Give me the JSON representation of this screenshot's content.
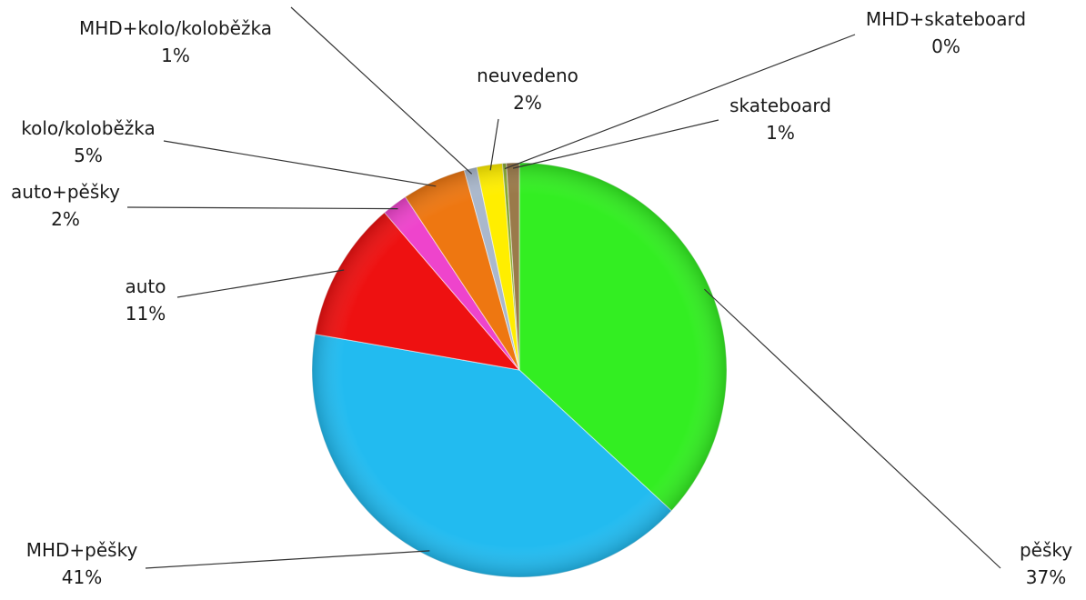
{
  "chart_data": {
    "type": "pie",
    "title": "",
    "slices": [
      {
        "label": "pěšky",
        "value": 37,
        "value_label": "37%",
        "color": "#33ee22"
      },
      {
        "label": "MHD+pěšky",
        "value": 41,
        "value_label": "41%",
        "color": "#22bbf0"
      },
      {
        "label": "auto",
        "value": 11,
        "value_label": "11%",
        "color": "#ee1111"
      },
      {
        "label": "auto+pěšky",
        "value": 2,
        "value_label": "2%",
        "color": "#ee44cc"
      },
      {
        "label": "kolo/koloběžka",
        "value": 5,
        "value_label": "5%",
        "color": "#ee7711"
      },
      {
        "label": "MHD+kolo/koloběžka",
        "value": 1,
        "value_label": "1%",
        "color": "#aab8cc"
      },
      {
        "label": "neuvedeno",
        "value": 2,
        "value_label": "2%",
        "color": "#ffee00"
      },
      {
        "label": "MHD+skateboard",
        "value": 0,
        "value_label": "0%",
        "color": "#88aa33"
      },
      {
        "label": "skateboard",
        "value": 1,
        "value_label": "1%",
        "color": "#9a7a4a"
      }
    ]
  }
}
